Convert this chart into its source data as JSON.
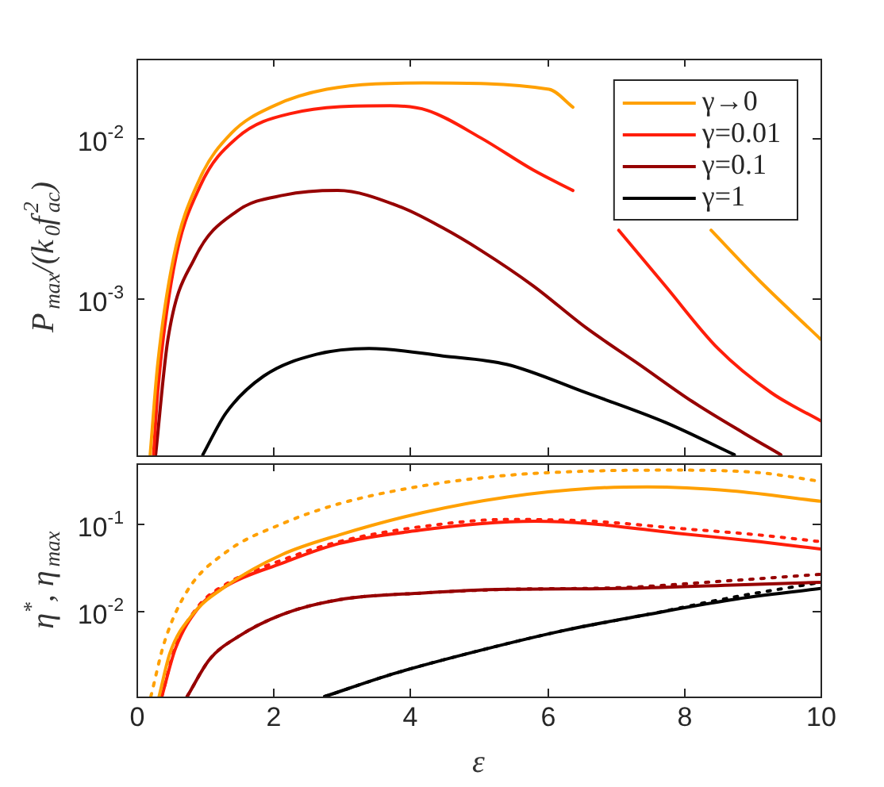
{
  "chart_data": [
    {
      "type": "line",
      "log": "y",
      "ylabel": "P$_{max}$/(k$_{0}$f$_{ac}$$^{2}$)",
      "xlim": [
        0,
        10
      ],
      "xticks": [
        0,
        2,
        4,
        6,
        8,
        10
      ],
      "ylim": [
        0.000106,
        0.031
      ],
      "yticks": [
        {
          "value": 0.001,
          "label": "10$^{-3}$"
        },
        {
          "value": 0.01,
          "label": "10$^{-2}$"
        }
      ],
      "tick_labels": "y",
      "legend": "top right",
      "series": [
        {
          "name": "γ→0",
          "color": "#ffa000",
          "x": [
            0.2,
            0.31,
            0.54,
            0.92,
            1.39,
            2.01,
            2.78,
            4.2,
            6.03,
            6.38,
            7.3,
            8.4,
            9.1,
            10
          ],
          "values": [
            0.000107,
            0.00039,
            0.00178,
            0.0055,
            0.0107,
            0.0158,
            0.02,
            0.0219,
            0.02,
            0.0155,
            null,
            0.00266,
            0.0013,
            0.00056
          ]
        },
        {
          "name": "γ=0.01",
          "color": "#ff1e0a",
          "x": [
            0.25,
            0.31,
            0.54,
            0.93,
            1.47,
            2.24,
            3.71,
            4.25,
            5.03,
            5.8,
            6.38,
            6.7,
            7.05,
            7.73,
            8.5,
            9.28,
            10
          ],
          "values": [
            0.000107,
            0.00026,
            0.00151,
            0.005,
            0.01,
            0.0141,
            0.0158,
            0.0148,
            0.01,
            0.0063,
            0.0047,
            null,
            0.00266,
            0.0012,
            0.00049,
            0.00026,
            0.000174
          ]
        },
        {
          "name": "γ=0.1",
          "color": "#960000",
          "x": [
            0.28,
            0.46,
            0.85,
            1.47,
            2.16,
            2.94,
            3.87,
            4.48,
            5.03,
            5.8,
            6.57,
            7.35,
            8.12,
            8.89,
            9.42
          ],
          "values": [
            0.000107,
            0.00056,
            0.00178,
            0.0035,
            0.0044,
            0.0047,
            0.0037,
            0.00275,
            0.002,
            0.0012,
            0.00066,
            0.00039,
            0.00023,
            0.000145,
            0.000107
          ]
        },
        {
          "name": "γ=1",
          "color": "#000000",
          "x": [
            0.97,
            1.31,
            1.86,
            2.63,
            3.4,
            4.48,
            5.41,
            6.57,
            7.73,
            8.74
          ],
          "values": [
            0.000107,
            0.000195,
            0.00033,
            0.00045,
            0.00049,
            0.00044,
            0.00039,
            0.00026,
            0.00017,
            0.000107
          ]
        }
      ]
    },
    {
      "type": "line",
      "log": "y",
      "xlabel": "ε",
      "ylabel": "η$^{*}$, η$_{max}$",
      "xlim": [
        0,
        10
      ],
      "xticks": [
        0,
        2,
        4,
        6,
        8,
        10
      ],
      "ylim": [
        0.001,
        0.5
      ],
      "yticks": [
        {
          "value": 0.01,
          "label": "10$^{-2}$"
        },
        {
          "value": 0.1,
          "label": "10$^{-1}$"
        }
      ],
      "series": [
        {
          "color": "#ffa000",
          "line_style": "solid",
          "x": [
            0.33,
            0.49,
            0.82,
            1.31,
            2.13,
            2.96,
            4.19,
            5.42,
            6.65,
            7.47,
            8.7,
            10
          ],
          "values": [
            0.001,
            0.0032,
            0.0089,
            0.019,
            0.044,
            0.074,
            0.135,
            0.204,
            0.257,
            0.266,
            0.24,
            0.182
          ]
        },
        {
          "color": "#ffa000",
          "line_style": "dotted",
          "x": [
            0.21,
            0.41,
            0.74,
            1.31,
            2.13,
            2.96,
            4.19,
            5.42,
            6.65,
            7.88,
            9.11,
            10
          ],
          "values": [
            0.001,
            0.0043,
            0.0166,
            0.047,
            0.1,
            0.17,
            0.275,
            0.363,
            0.407,
            0.417,
            0.389,
            0.309
          ]
        },
        {
          "color": "#ff1e0a",
          "line_style": "solid",
          "x": [
            0.37,
            0.57,
            0.9,
            1.31,
            2.13,
            2.96,
            4.19,
            5.01,
            5.83,
            6.65,
            7.88,
            9.11,
            10
          ],
          "values": [
            0.001,
            0.0036,
            0.0105,
            0.019,
            0.035,
            0.059,
            0.085,
            0.1,
            0.107,
            0.1,
            0.078,
            0.062,
            0.051
          ]
        },
        {
          "color": "#ff1e0a",
          "line_style": "dotted",
          "x": [
            0.37,
            0.57,
            0.9,
            1.31,
            2.13,
            2.96,
            4.19,
            5.42,
            6.65,
            7.88,
            9.11,
            10
          ],
          "values": [
            0.001,
            0.0038,
            0.011,
            0.02,
            0.038,
            0.062,
            0.093,
            0.112,
            0.107,
            0.089,
            0.074,
            0.062
          ]
        },
        {
          "color": "#960000",
          "line_style": "solid",
          "x": [
            0.74,
            1.07,
            1.48,
            2.13,
            2.96,
            4.19,
            5.42,
            7.06,
            8.7,
            10
          ],
          "values": [
            0.001,
            0.0027,
            0.0049,
            0.0089,
            0.0132,
            0.0158,
            0.0174,
            0.0178,
            0.0195,
            0.021
          ]
        },
        {
          "color": "#960000",
          "line_style": "dotted",
          "x": [
            0.74,
            1.07,
            1.48,
            2.13,
            2.96,
            4.19,
            5.42,
            7.06,
            8.7,
            10
          ],
          "values": [
            0.001,
            0.0027,
            0.0049,
            0.0089,
            0.0132,
            0.0158,
            0.0174,
            0.0182,
            0.022,
            0.026
          ]
        },
        {
          "color": "#000000",
          "line_style": "solid",
          "x": [
            2.75,
            3.78,
            5.01,
            6.24,
            7.47,
            8.7,
            10
          ],
          "values": [
            0.001,
            0.00186,
            0.0034,
            0.0058,
            0.0089,
            0.0132,
            0.0178
          ]
        },
        {
          "color": "#000000",
          "line_style": "dotted",
          "x": [
            2.75,
            3.78,
            5.01,
            6.24,
            7.47,
            8.7,
            10
          ],
          "values": [
            0.001,
            0.00186,
            0.0034,
            0.0058,
            0.0089,
            0.014,
            0.021
          ]
        }
      ]
    }
  ]
}
